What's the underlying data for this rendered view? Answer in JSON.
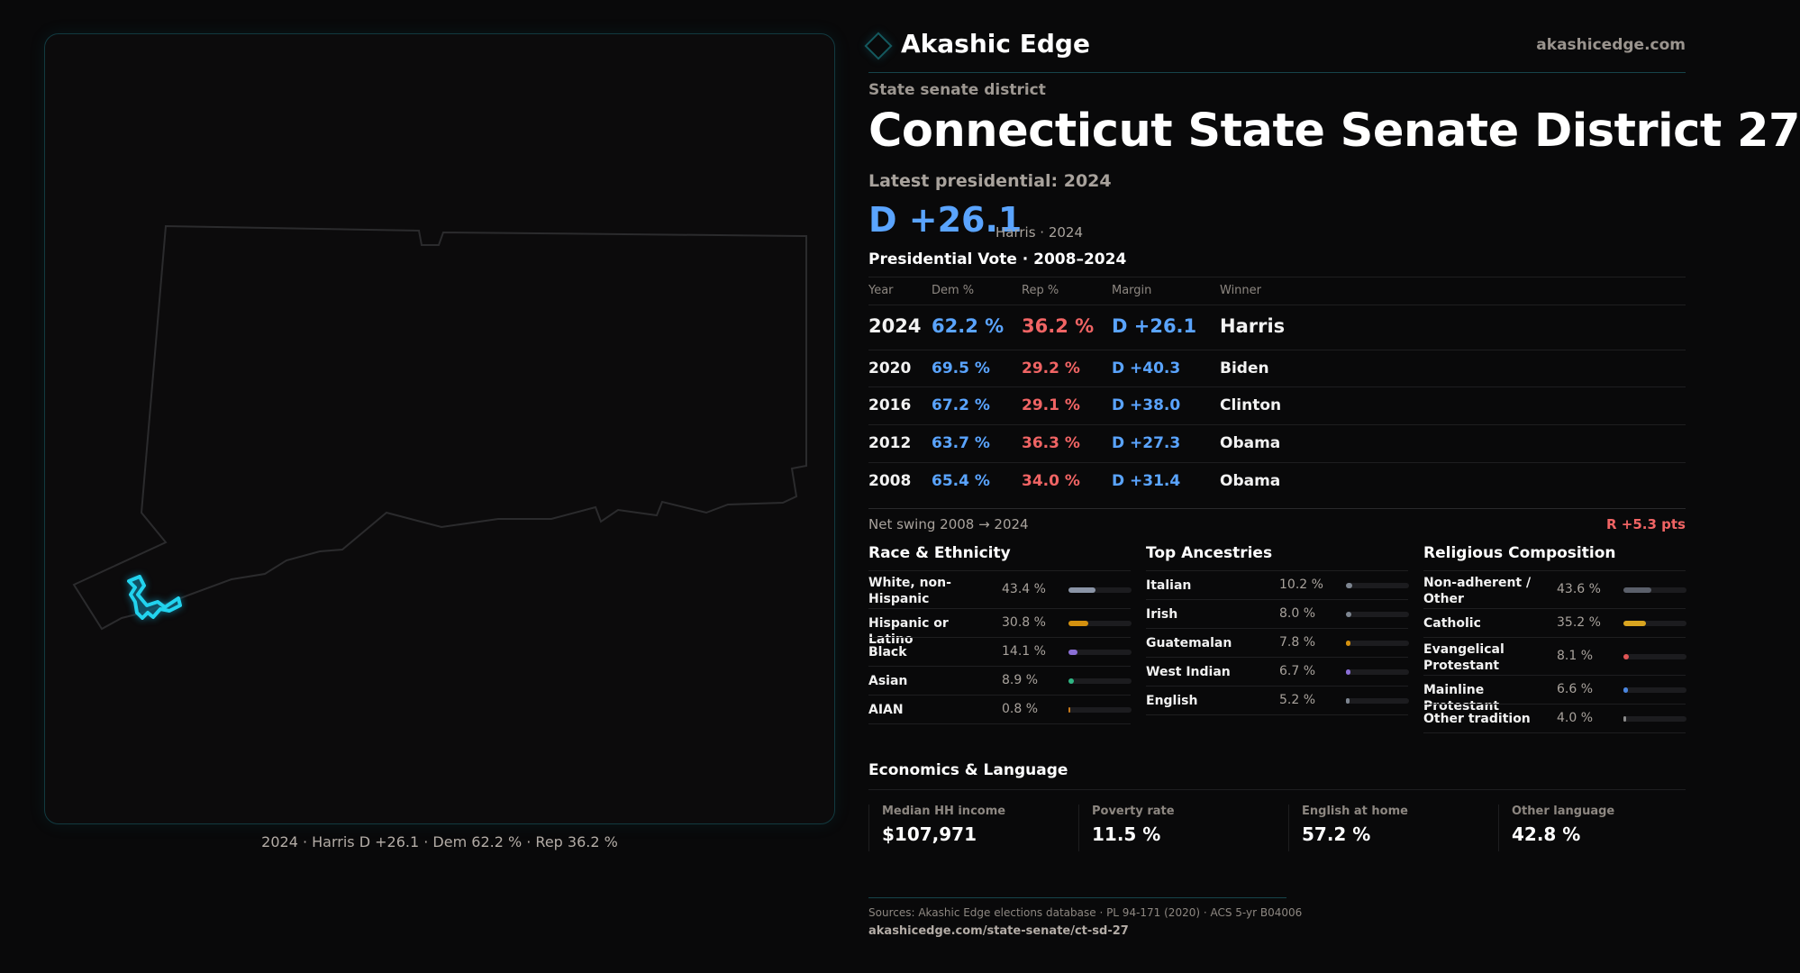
{
  "brand": {
    "name": "Akashic Edge",
    "site": "akashicedge.com",
    "logo_icon": "diamond-icon",
    "accent": "#14595f"
  },
  "header": {
    "kicker": "State senate district",
    "title": "Connecticut State Senate District 27",
    "latest": "Latest presidential: 2024",
    "margin": "D +26.1",
    "margin_sub": "Harris · 2024"
  },
  "map": {
    "caption": "2024 · Harris D +26.1 · Dem 62.2 % · Rep 36.2 %",
    "highlight_color": "#22d3ee"
  },
  "presidential": {
    "title": "Presidential Vote · 2008–2024",
    "headers": [
      "Year",
      "Dem %",
      "Rep %",
      "Margin",
      "Winner"
    ],
    "rows": [
      [
        "2024",
        "62.2 %",
        "36.2 %",
        "D +26.1",
        "Harris"
      ],
      [
        "2020",
        "69.5 %",
        "29.2 %",
        "D +40.3",
        "Biden"
      ],
      [
        "2016",
        "67.2 %",
        "29.1 %",
        "D +38.0",
        "Clinton"
      ],
      [
        "2012",
        "63.7 %",
        "36.3 %",
        "D +27.3",
        "Obama"
      ],
      [
        "2008",
        "65.4 %",
        "34.0 %",
        "D +31.4",
        "Obama"
      ]
    ],
    "swing_label": "Net swing 2008 → 2024",
    "swing_value": "R +5.3 pts",
    "colors": {
      "dem": "#5aa4ff",
      "rep": "#f06464"
    }
  },
  "sections": [
    {
      "title": "Race & Ethnicity",
      "items": [
        {
          "label": "White, non-Hispanic",
          "pct": "43.4 %",
          "value": 43.4,
          "color": "#8a94a6"
        },
        {
          "label": "Hispanic or Latino",
          "pct": "30.8 %",
          "value": 30.8,
          "color": "#d4910f"
        },
        {
          "label": "Black",
          "pct": "14.1 %",
          "value": 14.1,
          "color": "#8b6fd6"
        },
        {
          "label": "Asian",
          "pct": "8.9 %",
          "value": 8.9,
          "color": "#2fb583"
        },
        {
          "label": "AIAN",
          "pct": "0.8 %",
          "value": 0.8,
          "color": "#c87a1a"
        }
      ]
    },
    {
      "title": "Top Ancestries",
      "items": [
        {
          "label": "Italian",
          "pct": "10.2 %",
          "value": 10.2,
          "color": "#7d8590"
        },
        {
          "label": "Irish",
          "pct": "8.0 %",
          "value": 8.0,
          "color": "#7d8590"
        },
        {
          "label": "Guatemalan",
          "pct": "7.8 %",
          "value": 7.8,
          "color": "#d4910f"
        },
        {
          "label": "West Indian",
          "pct": "6.7 %",
          "value": 6.7,
          "color": "#8b6fd6"
        },
        {
          "label": "English",
          "pct": "5.2 %",
          "value": 5.2,
          "color": "#7d8590"
        }
      ]
    },
    {
      "title": "Religious Composition",
      "items": [
        {
          "label": "Non-adherent / Other",
          "pct": "43.6 %",
          "value": 43.6,
          "color": "#5a5f6a"
        },
        {
          "label": "Catholic",
          "pct": "35.2 %",
          "value": 35.2,
          "color": "#d9a520"
        },
        {
          "label": "Evangelical Protestant",
          "pct": "8.1 %",
          "value": 8.1,
          "color": "#e05555"
        },
        {
          "label": "Mainline Protestant",
          "pct": "6.6 %",
          "value": 6.6,
          "color": "#4a86e0"
        },
        {
          "label": "Other tradition",
          "pct": "4.0 %",
          "value": 4.0,
          "color": "#8a8a8a"
        }
      ]
    }
  ],
  "economics": {
    "title": "Economics & Language",
    "cards": [
      {
        "label": "Median HH income",
        "value": "$107,971"
      },
      {
        "label": "Poverty rate",
        "value": "11.5 %"
      },
      {
        "label": "English at home",
        "value": "57.2 %"
      },
      {
        "label": "Other language",
        "value": "42.8 %"
      }
    ]
  },
  "footer": {
    "sources": "Sources: Akashic Edge elections database · PL 94-171 (2020) · ACS 5-yr B04006",
    "url": "akashicedge.com/state-senate/ct-sd-27"
  }
}
